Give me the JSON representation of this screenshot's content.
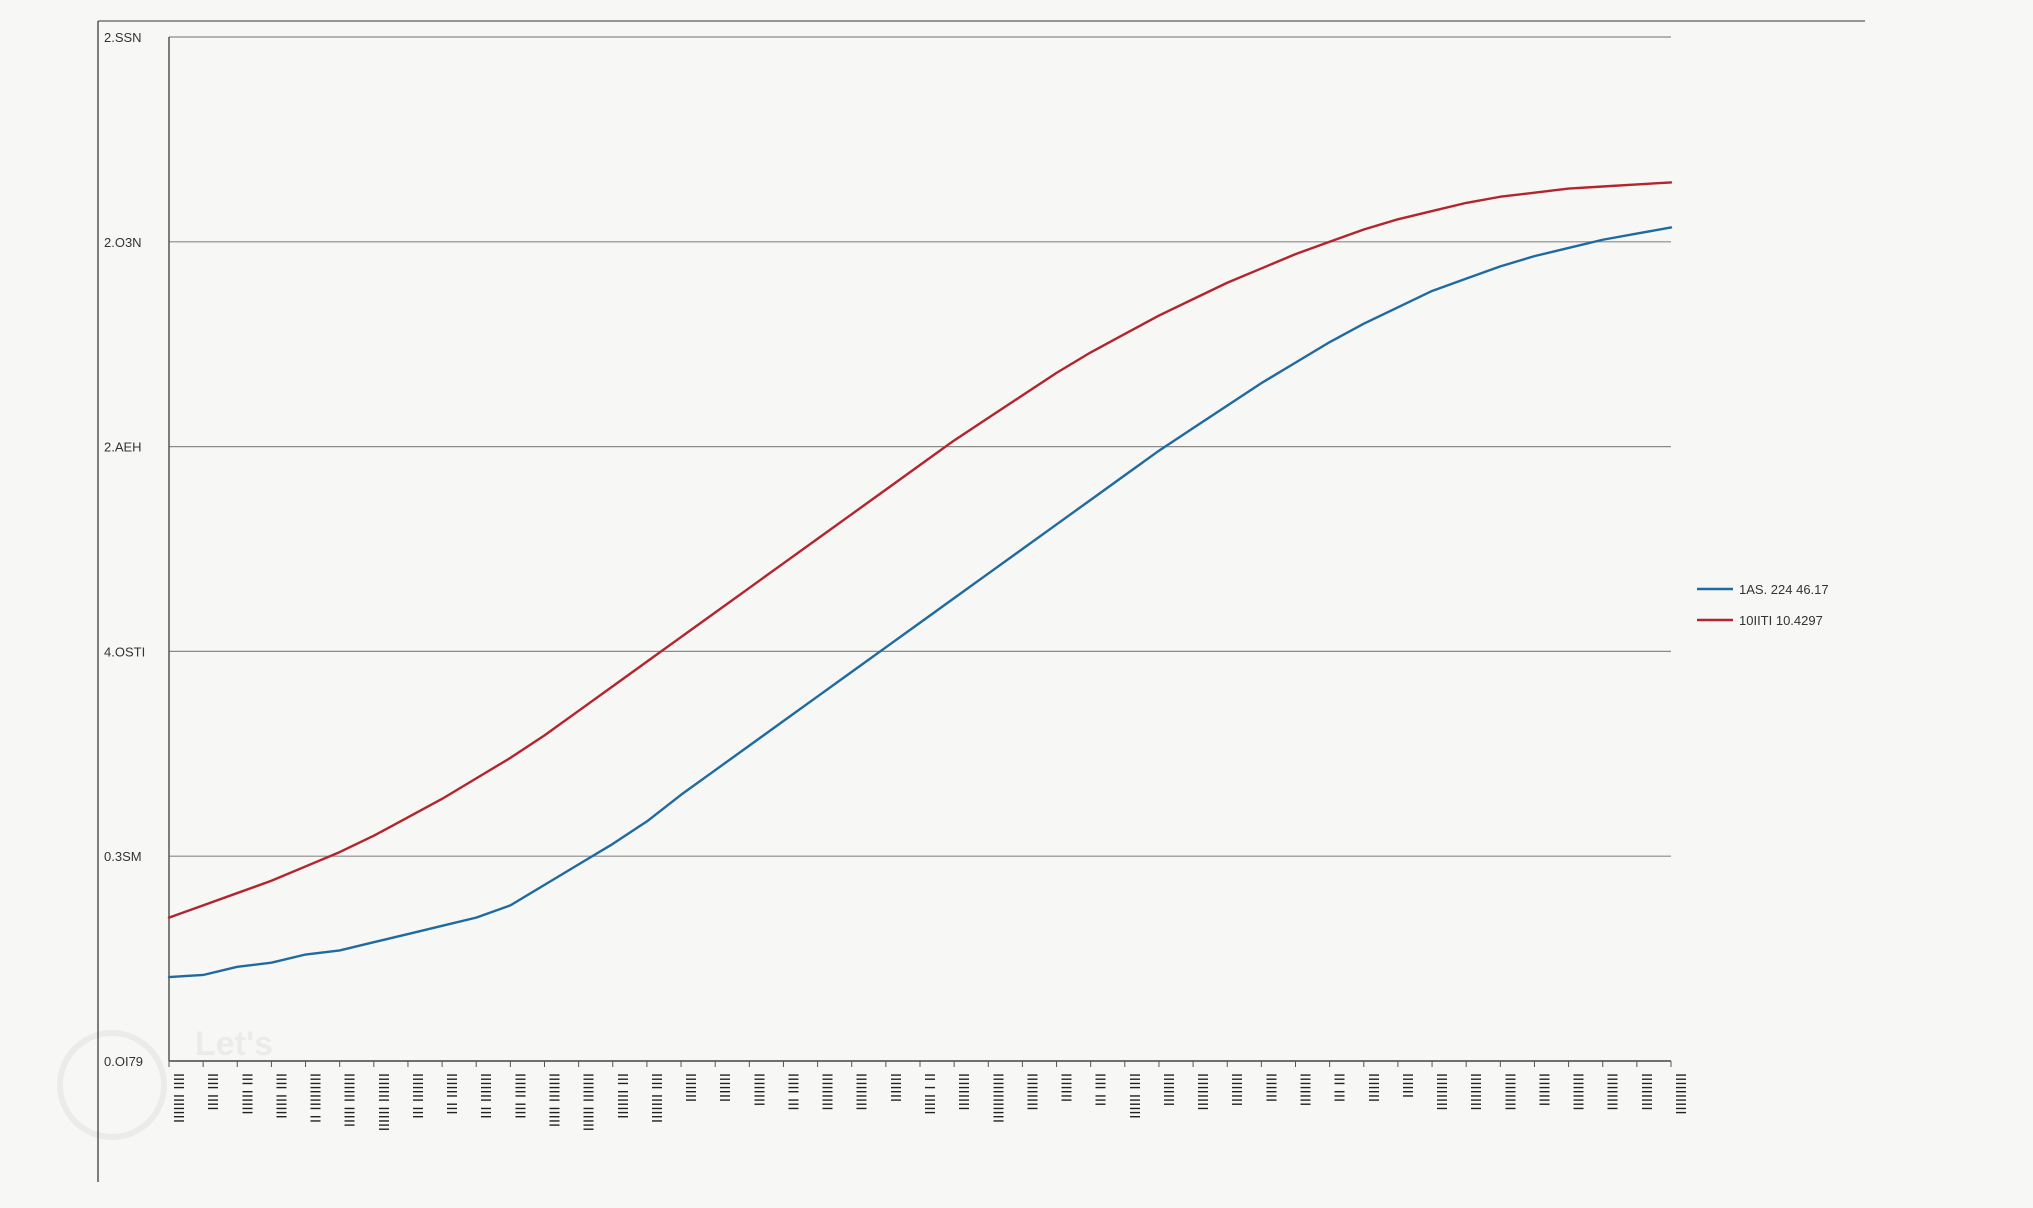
{
  "chart_data": {
    "type": "line",
    "grid": true,
    "legend_position": "right",
    "y_tick_labels": [
      "2.SSN",
      "2.O3N",
      "2.AEH",
      "4.OSTI",
      "0.3SM",
      "0.OI79"
    ],
    "ylim": [
      0,
      5
    ],
    "x": [
      0,
      1,
      2,
      3,
      4,
      5,
      6,
      7,
      8,
      9,
      10,
      11,
      12,
      13,
      14,
      15,
      16,
      17,
      18,
      19,
      20,
      21,
      22,
      23,
      24,
      25,
      26,
      27,
      28,
      29,
      30,
      31,
      32,
      33,
      34,
      35,
      36,
      37,
      38,
      39,
      40,
      41,
      42,
      43,
      44
    ],
    "x_tick_labels": [
      "IIII IIIIIII",
      "IIII IIII",
      "III IIIIII",
      "IIII IIIIII",
      "IIIIIIIII II",
      "IIIIIII IIIII",
      "IIIIIII IIIIII",
      "IIIIIII III",
      "IIIIII III",
      "IIIIIII III",
      "IIIIII IIII",
      "IIIIIII IIIII",
      "IIIIIII IIIIII",
      "III IIIIIII",
      "IIII IIIIIII",
      "IIIIIII",
      "IIIIIII",
      "IIIIIIII",
      "IIIII III",
      "IIIIIIIII",
      "IIIIIIIII",
      "IIIIIII",
      "II I IIIII",
      "IIIIIIIII",
      "IIIIIIIIIIII",
      "IIIIIIIII",
      "IIIIIII",
      "IIII III",
      "IIII IIIIII",
      "IIIIIIII",
      "IIIIIIIII",
      "IIIIIIII",
      "IIIIIII",
      "IIIIIIII",
      "III III",
      "IIIIIII",
      "IIIIII",
      "IIIIIIIII",
      "IIIIIIIII",
      "IIIIIIIII",
      "IIIIIIII",
      "IIIIIIIII",
      "IIIIIIIII",
      "IIIIIIIII",
      "IIIIIIIIII"
    ],
    "series": [
      {
        "name": "1AS. 224 46.17",
        "color": "#1f6a9e",
        "values": [
          0.41,
          0.42,
          0.46,
          0.48,
          0.52,
          0.54,
          0.58,
          0.62,
          0.66,
          0.7,
          0.76,
          0.86,
          0.96,
          1.06,
          1.17,
          1.3,
          1.42,
          1.54,
          1.66,
          1.78,
          1.9,
          2.02,
          2.14,
          2.26,
          2.38,
          2.5,
          2.62,
          2.74,
          2.86,
          2.98,
          3.09,
          3.2,
          3.31,
          3.41,
          3.51,
          3.6,
          3.68,
          3.76,
          3.82,
          3.88,
          3.93,
          3.97,
          4.01,
          4.04,
          4.07
        ]
      },
      {
        "name": "10IITI 10.4297",
        "color": "#b3242c",
        "values": [
          0.7,
          0.76,
          0.82,
          0.88,
          0.95,
          1.02,
          1.1,
          1.19,
          1.28,
          1.38,
          1.48,
          1.59,
          1.71,
          1.83,
          1.95,
          2.07,
          2.19,
          2.31,
          2.43,
          2.55,
          2.67,
          2.79,
          2.91,
          3.03,
          3.14,
          3.25,
          3.36,
          3.46,
          3.55,
          3.64,
          3.72,
          3.8,
          3.87,
          3.94,
          4.0,
          4.06,
          4.11,
          4.15,
          4.19,
          4.22,
          4.24,
          4.26,
          4.27,
          4.28,
          4.29
        ]
      }
    ],
    "watermark": "Let's"
  }
}
